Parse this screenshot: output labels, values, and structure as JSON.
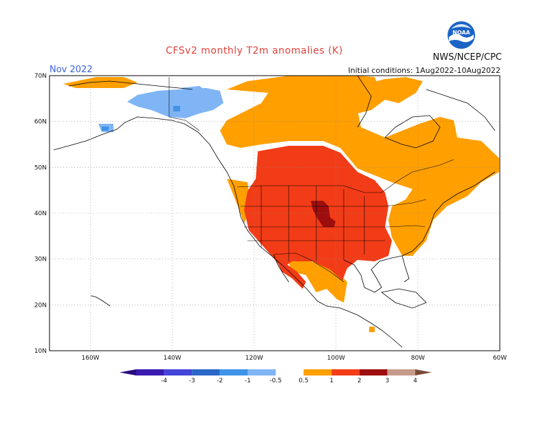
{
  "header": {
    "title": "CFSv2 monthly T2m anomalies (K)",
    "credit": "NWS/NCEP/CPC",
    "month": "Nov 2022",
    "initial_conditions": "Initial conditions: 1Aug2022-10Aug2022"
  },
  "logo": {
    "text": "NOAA",
    "colors": {
      "ring": "#1a63c7",
      "inner": "#ffffff"
    },
    "icon": "noaa-logo-icon"
  },
  "map": {
    "lat_range": [
      10,
      70
    ],
    "lon_range": [
      -170,
      -60
    ],
    "lat_ticks": [
      {
        "value": 10,
        "label": "10N"
      },
      {
        "value": 20,
        "label": "20N"
      },
      {
        "value": 30,
        "label": "30N"
      },
      {
        "value": 40,
        "label": "40N"
      },
      {
        "value": 50,
        "label": "50N"
      },
      {
        "value": 60,
        "label": "60N"
      },
      {
        "value": 70,
        "label": "70N"
      }
    ],
    "lon_ticks": [
      {
        "value": -160,
        "label": "160W"
      },
      {
        "value": -140,
        "label": "140W"
      },
      {
        "value": -120,
        "label": "120W"
      },
      {
        "value": -100,
        "label": "100W"
      },
      {
        "value": -80,
        "label": "80W"
      },
      {
        "value": -60,
        "label": "60W"
      }
    ],
    "grid": "dotted",
    "colors": {
      "pos_0_5_1": "#ff9f00",
      "pos_1_2": "#f23c17",
      "pos_2_3": "#9e0e0e",
      "neg_0_5_1": "#7fb5f5",
      "neg_1_2": "#3f93e8"
    },
    "anomaly_regions": [
      {
        "level": "0.5 to 1",
        "desc": "Canada, Alaska fringe, Great Lakes, northeast US"
      },
      {
        "level": "1 to 2",
        "desc": "western and central US, Mexico north"
      },
      {
        "level": "2 to 3",
        "desc": "central Plains"
      },
      {
        "level": "-1 to -0.5",
        "desc": "Alaska and Yukon"
      },
      {
        "level": "-2 to -1",
        "desc": "small patches in Alaska"
      }
    ]
  },
  "colorbar": {
    "boundaries": [
      "-4",
      "-3",
      "-2",
      "-1",
      "-0.5",
      "0.5",
      "1",
      "2",
      "3",
      "4"
    ],
    "colors": [
      "#3a1bb0",
      "#4444d8",
      "#2a67c9",
      "#3f93e8",
      "#7fb5f5",
      "#ffffff",
      "#ff9f00",
      "#f23c17",
      "#9e0e0e",
      "#c79b8b"
    ],
    "low_arrow_color": "#2a0a80",
    "high_arrow_color": "#7a4a38"
  }
}
